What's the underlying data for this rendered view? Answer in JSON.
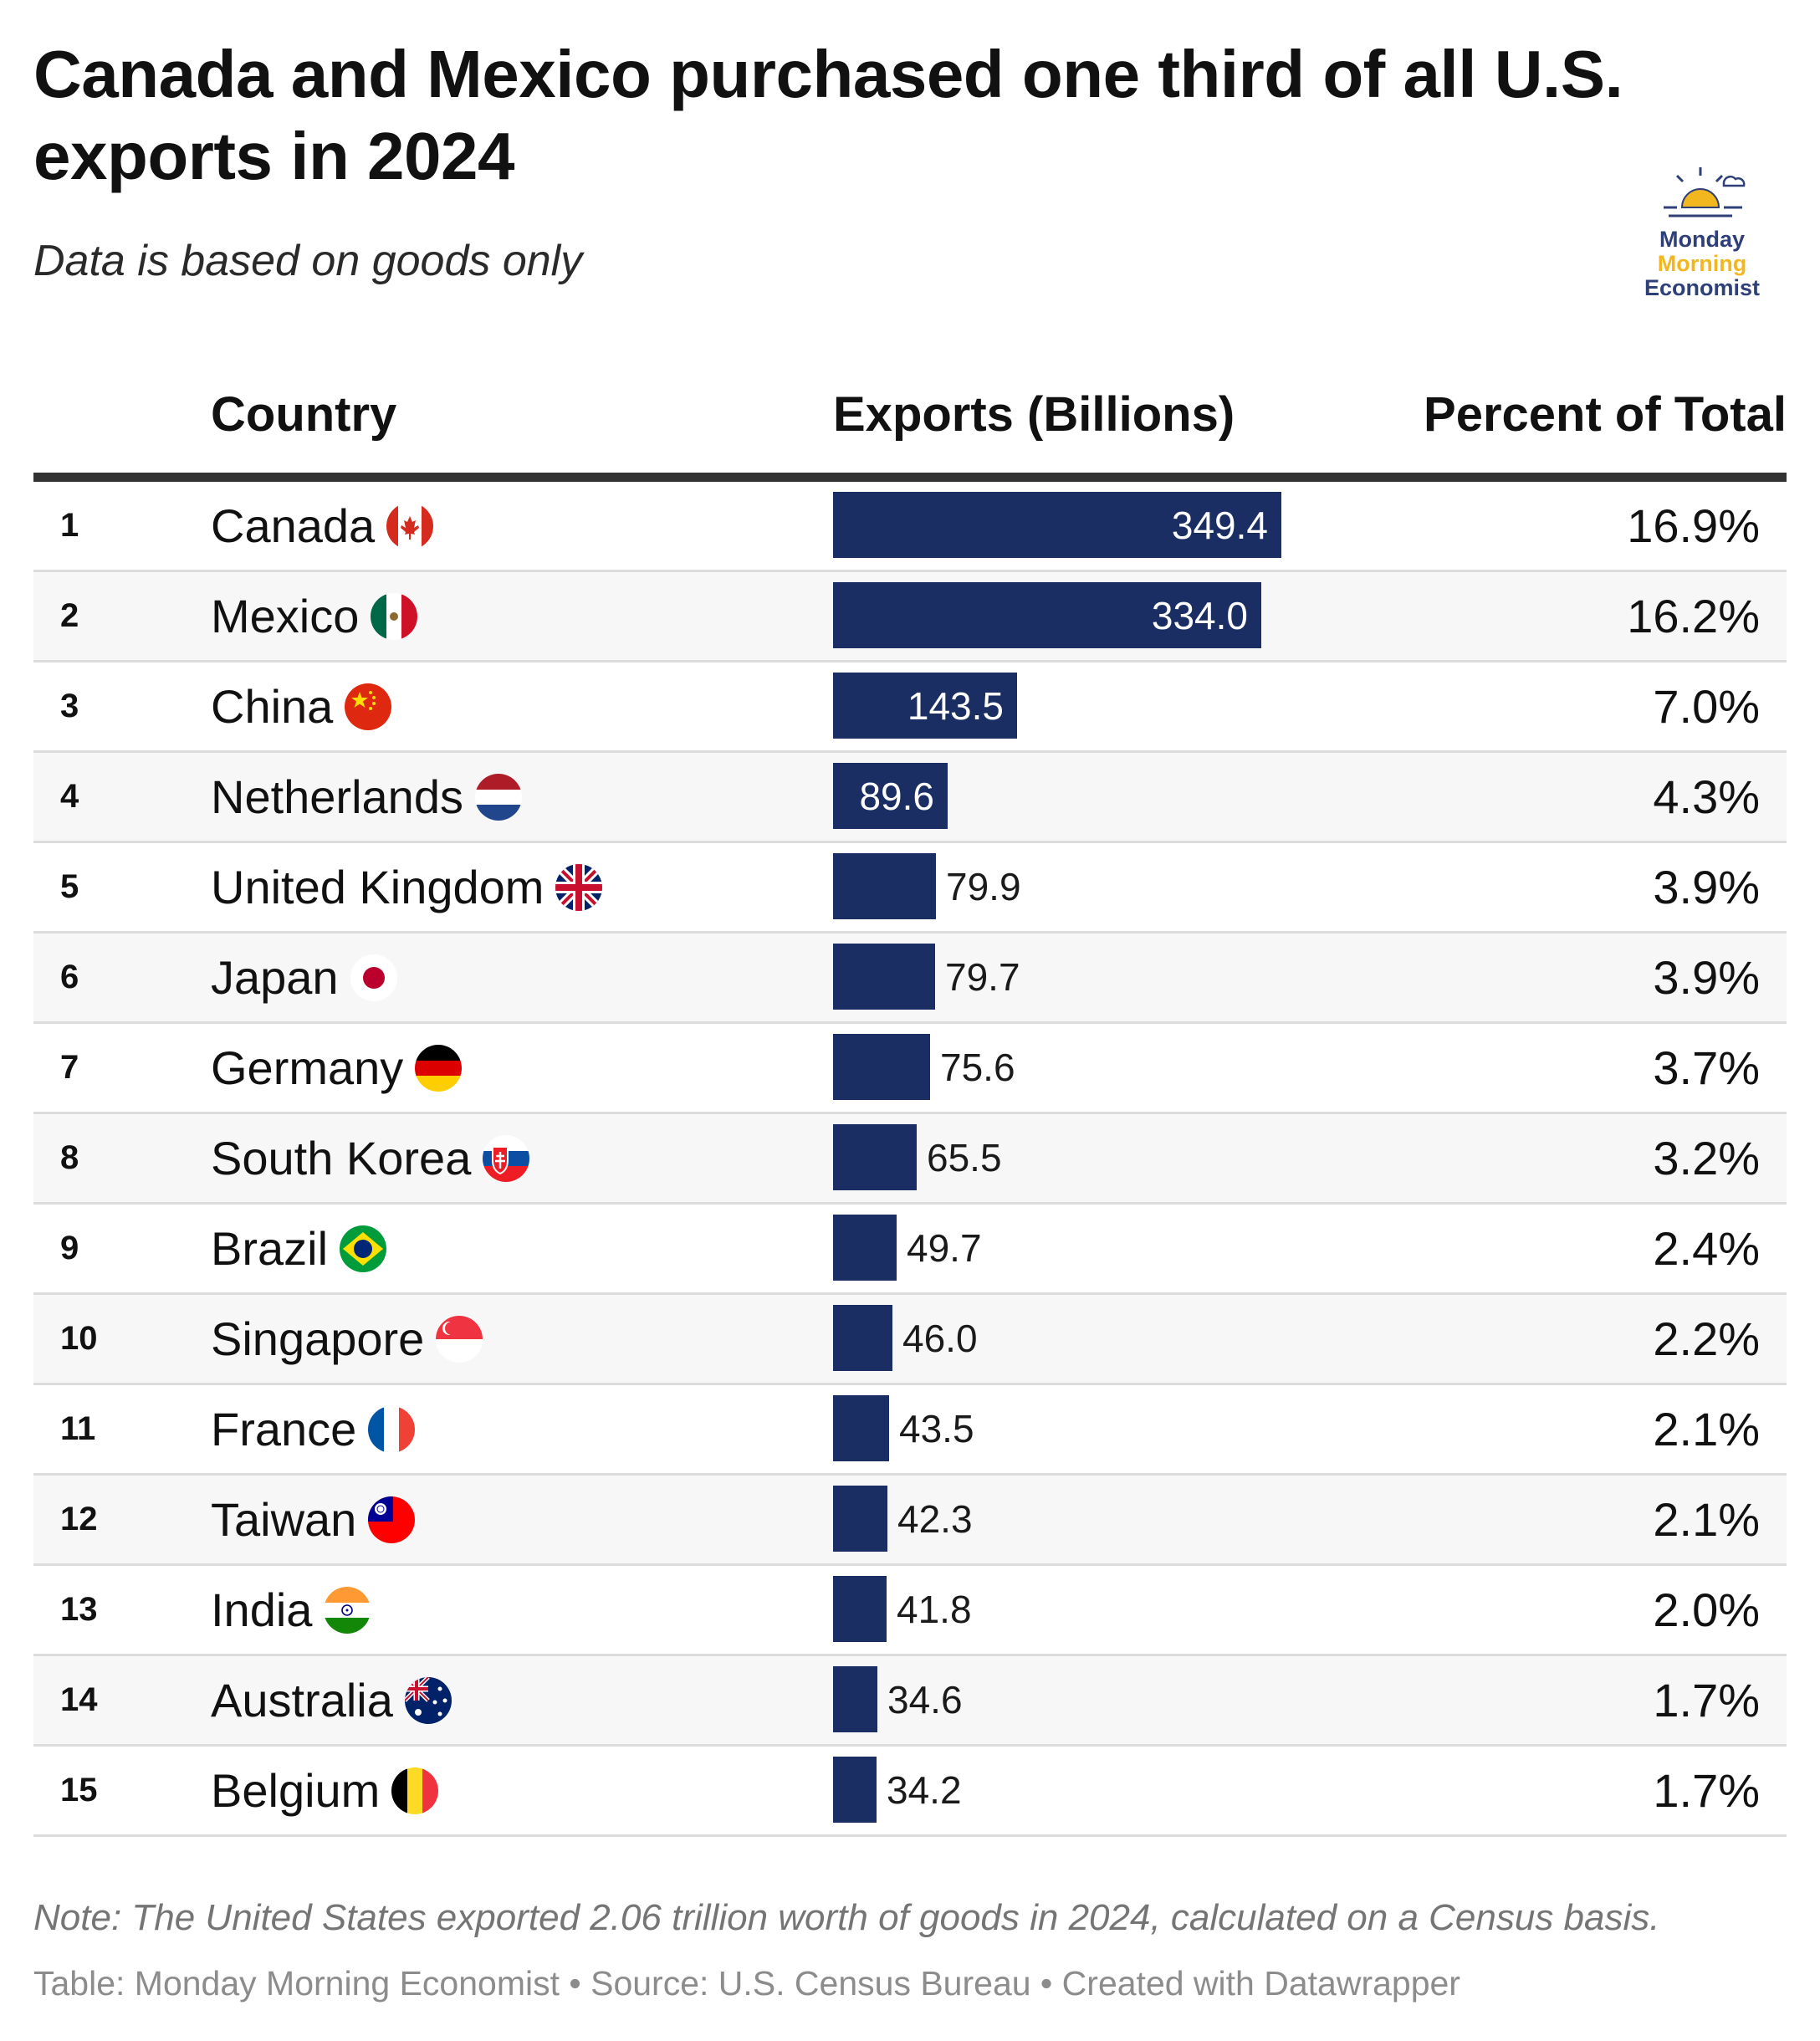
{
  "header": {
    "title": "Canada and Mexico purchased one third of all U.S. exports in 2024",
    "subtitle": "Data is based on goods only"
  },
  "logo": {
    "line1": "Monday",
    "line2": "Morning",
    "line3": "Economist"
  },
  "table": {
    "columns": {
      "country": "Country",
      "exports": "Exports (Billions)",
      "percent": "Percent of Total"
    }
  },
  "chart_data": {
    "type": "table",
    "title": "Canada and Mexico purchased one third of all U.S. exports in 2024",
    "subtitle": "Data is based on goods only",
    "columns": [
      "Country",
      "Exports (Billions)",
      "Percent of Total"
    ],
    "bar_color": "#1b2e63",
    "rows": [
      {
        "rank": "1",
        "country": "Canada",
        "flag": "canada-flag",
        "value": 349.4,
        "value_label": "349.4",
        "percent": "16.9%"
      },
      {
        "rank": "2",
        "country": "Mexico",
        "flag": "mexico-flag",
        "value": 334.0,
        "value_label": "334.0",
        "percent": "16.2%"
      },
      {
        "rank": "3",
        "country": "China",
        "flag": "china-flag",
        "value": 143.5,
        "value_label": "143.5",
        "percent": "7.0%"
      },
      {
        "rank": "4",
        "country": "Netherlands",
        "flag": "netherlands-flag",
        "value": 89.6,
        "value_label": "89.6",
        "percent": "4.3%"
      },
      {
        "rank": "5",
        "country": "United Kingdom",
        "flag": "uk-flag",
        "value": 79.9,
        "value_label": "79.9",
        "percent": "3.9%"
      },
      {
        "rank": "6",
        "country": "Japan",
        "flag": "japan-flag",
        "value": 79.7,
        "value_label": "79.7",
        "percent": "3.9%"
      },
      {
        "rank": "7",
        "country": "Germany",
        "flag": "germany-flag",
        "value": 75.6,
        "value_label": "75.6",
        "percent": "3.7%"
      },
      {
        "rank": "8",
        "country": "South Korea",
        "flag": "slovakia-flag",
        "value": 65.5,
        "value_label": "65.5",
        "percent": "3.2%"
      },
      {
        "rank": "9",
        "country": "Brazil",
        "flag": "brazil-flag",
        "value": 49.7,
        "value_label": "49.7",
        "percent": "2.4%"
      },
      {
        "rank": "10",
        "country": "Singapore",
        "flag": "singapore-flag",
        "value": 46.0,
        "value_label": "46.0",
        "percent": "2.2%"
      },
      {
        "rank": "11",
        "country": "France",
        "flag": "france-flag",
        "value": 43.5,
        "value_label": "43.5",
        "percent": "2.1%"
      },
      {
        "rank": "12",
        "country": "Taiwan",
        "flag": "taiwan-flag",
        "value": 42.3,
        "value_label": "42.3",
        "percent": "2.1%"
      },
      {
        "rank": "13",
        "country": "India",
        "flag": "india-flag",
        "value": 41.8,
        "value_label": "41.8",
        "percent": "2.0%"
      },
      {
        "rank": "14",
        "country": "Australia",
        "flag": "australia-flag",
        "value": 34.6,
        "value_label": "34.6",
        "percent": "1.7%"
      },
      {
        "rank": "15",
        "country": "Belgium",
        "flag": "belgium-flag",
        "value": 34.2,
        "value_label": "34.2",
        "percent": "1.7%"
      }
    ]
  },
  "footer": {
    "note": "Note: The United States exported 2.06 trillion worth of goods in 2024, calculated on a Census basis.",
    "source": "Table: Monday Morning Economist • Source: U.S. Census Bureau • Created with Datawrapper"
  }
}
